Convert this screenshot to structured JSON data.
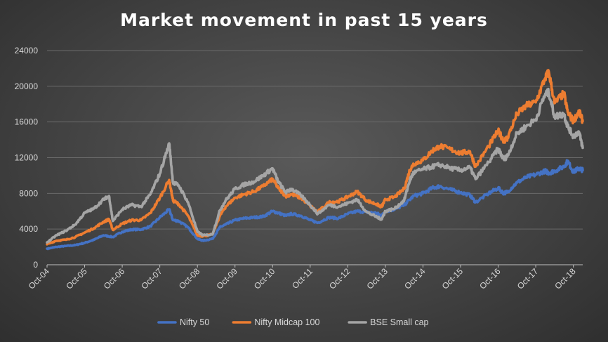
{
  "chart_data": {
    "type": "line",
    "title": "Market  movement  in  past  15  years",
    "xlabel": "",
    "ylabel": "",
    "ylim": [
      0,
      24000
    ],
    "yticks": [
      0,
      4000,
      8000,
      12000,
      16000,
      20000,
      24000
    ],
    "grid": true,
    "legend_position": "bottom",
    "x_tick_labels": [
      "Oct-04",
      "Oct-05",
      "Oct-06",
      "Oct-07",
      "Oct-08",
      "Oct-09",
      "Oct-10",
      "Oct-11",
      "Oct-12",
      "Oct-13",
      "Oct-14",
      "Oct-15",
      "Oct-16",
      "Oct-17",
      "Oct-18"
    ],
    "x_range_years": [
      2004.75,
      2019.0
    ],
    "series": [
      {
        "name": "Nifty 50",
        "color": "#4472c4",
        "points": [
          [
            2004.75,
            1800
          ],
          [
            2005.0,
            2000
          ],
          [
            2005.25,
            2100
          ],
          [
            2005.5,
            2200
          ],
          [
            2005.75,
            2450
          ],
          [
            2006.0,
            2800
          ],
          [
            2006.25,
            3300
          ],
          [
            2006.5,
            3100
          ],
          [
            2006.75,
            3700
          ],
          [
            2007.0,
            3950
          ],
          [
            2007.25,
            3950
          ],
          [
            2007.5,
            4300
          ],
          [
            2007.75,
            5300
          ],
          [
            2008.0,
            6200
          ],
          [
            2008.1,
            5000
          ],
          [
            2008.25,
            4900
          ],
          [
            2008.5,
            4200
          ],
          [
            2008.75,
            2900
          ],
          [
            2008.9,
            2700
          ],
          [
            2009.15,
            2900
          ],
          [
            2009.35,
            4200
          ],
          [
            2009.5,
            4500
          ],
          [
            2009.75,
            5000
          ],
          [
            2010.0,
            5200
          ],
          [
            2010.25,
            5300
          ],
          [
            2010.5,
            5400
          ],
          [
            2010.75,
            6000
          ],
          [
            2010.9,
            5800
          ],
          [
            2011.1,
            5500
          ],
          [
            2011.25,
            5700
          ],
          [
            2011.5,
            5500
          ],
          [
            2011.75,
            5000
          ],
          [
            2011.95,
            4700
          ],
          [
            2012.25,
            5300
          ],
          [
            2012.5,
            5200
          ],
          [
            2012.75,
            5700
          ],
          [
            2013.0,
            6000
          ],
          [
            2013.25,
            5900
          ],
          [
            2013.5,
            5800
          ],
          [
            2013.65,
            5500
          ],
          [
            2013.75,
            6000
          ],
          [
            2014.0,
            6200
          ],
          [
            2014.25,
            6700
          ],
          [
            2014.5,
            7700
          ],
          [
            2014.75,
            8000
          ],
          [
            2015.0,
            8600
          ],
          [
            2015.2,
            8800
          ],
          [
            2015.5,
            8400
          ],
          [
            2015.75,
            8100
          ],
          [
            2016.0,
            7800
          ],
          [
            2016.15,
            7000
          ],
          [
            2016.5,
            8000
          ],
          [
            2016.75,
            8600
          ],
          [
            2016.9,
            8000
          ],
          [
            2017.0,
            8200
          ],
          [
            2017.25,
            9200
          ],
          [
            2017.5,
            9800
          ],
          [
            2017.75,
            10100
          ],
          [
            2018.0,
            10500
          ],
          [
            2018.1,
            10300
          ],
          [
            2018.25,
            10500
          ],
          [
            2018.5,
            11000
          ],
          [
            2018.6,
            11600
          ],
          [
            2018.75,
            10400
          ],
          [
            2018.9,
            10800
          ],
          [
            2019.0,
            10600
          ]
        ]
      },
      {
        "name": "Nifty Midcap 100",
        "color": "#ed7d31",
        "points": [
          [
            2004.75,
            2300
          ],
          [
            2005.0,
            2700
          ],
          [
            2005.25,
            2800
          ],
          [
            2005.5,
            3100
          ],
          [
            2005.75,
            3600
          ],
          [
            2006.0,
            4100
          ],
          [
            2006.25,
            4800
          ],
          [
            2006.4,
            5100
          ],
          [
            2006.5,
            3900
          ],
          [
            2006.75,
            4600
          ],
          [
            2007.0,
            5000
          ],
          [
            2007.25,
            5000
          ],
          [
            2007.5,
            5800
          ],
          [
            2007.75,
            7500
          ],
          [
            2008.0,
            9500
          ],
          [
            2008.1,
            7200
          ],
          [
            2008.25,
            6800
          ],
          [
            2008.5,
            5500
          ],
          [
            2008.75,
            3300
          ],
          [
            2008.9,
            3200
          ],
          [
            2009.15,
            3400
          ],
          [
            2009.35,
            5500
          ],
          [
            2009.5,
            6500
          ],
          [
            2009.75,
            7500
          ],
          [
            2010.0,
            7900
          ],
          [
            2010.25,
            8200
          ],
          [
            2010.5,
            8800
          ],
          [
            2010.75,
            9600
          ],
          [
            2010.9,
            8600
          ],
          [
            2011.1,
            7700
          ],
          [
            2011.25,
            7900
          ],
          [
            2011.5,
            7500
          ],
          [
            2011.75,
            6600
          ],
          [
            2011.95,
            5900
          ],
          [
            2012.25,
            7000
          ],
          [
            2012.5,
            7100
          ],
          [
            2012.75,
            7600
          ],
          [
            2013.0,
            8200
          ],
          [
            2013.25,
            7200
          ],
          [
            2013.5,
            6800
          ],
          [
            2013.65,
            6500
          ],
          [
            2013.75,
            7300
          ],
          [
            2014.0,
            7600
          ],
          [
            2014.25,
            8500
          ],
          [
            2014.4,
            10600
          ],
          [
            2014.5,
            11300
          ],
          [
            2014.75,
            11700
          ],
          [
            2015.0,
            12800
          ],
          [
            2015.2,
            13300
          ],
          [
            2015.5,
            12900
          ],
          [
            2015.75,
            12500
          ],
          [
            2016.0,
            12700
          ],
          [
            2016.15,
            11000
          ],
          [
            2016.5,
            13300
          ],
          [
            2016.75,
            15000
          ],
          [
            2016.9,
            13900
          ],
          [
            2017.0,
            14200
          ],
          [
            2017.25,
            16900
          ],
          [
            2017.5,
            17800
          ],
          [
            2017.75,
            18200
          ],
          [
            2018.0,
            20900
          ],
          [
            2018.1,
            21600
          ],
          [
            2018.25,
            18100
          ],
          [
            2018.5,
            19200
          ],
          [
            2018.6,
            17100
          ],
          [
            2018.75,
            16100
          ],
          [
            2018.9,
            17200
          ],
          [
            2019.0,
            16100
          ]
        ]
      },
      {
        "name": "BSE Small cap",
        "color": "#a5a5a5",
        "points": [
          [
            2004.75,
            2500
          ],
          [
            2005.0,
            3300
          ],
          [
            2005.25,
            3800
          ],
          [
            2005.5,
            4500
          ],
          [
            2005.75,
            5800
          ],
          [
            2006.0,
            6300
          ],
          [
            2006.25,
            7300
          ],
          [
            2006.4,
            7700
          ],
          [
            2006.5,
            4900
          ],
          [
            2006.75,
            6200
          ],
          [
            2007.0,
            6700
          ],
          [
            2007.25,
            6500
          ],
          [
            2007.5,
            7900
          ],
          [
            2007.75,
            10200
          ],
          [
            2008.0,
            13600
          ],
          [
            2008.1,
            9200
          ],
          [
            2008.25,
            8900
          ],
          [
            2008.5,
            7000
          ],
          [
            2008.75,
            3700
          ],
          [
            2008.9,
            3300
          ],
          [
            2009.15,
            3400
          ],
          [
            2009.35,
            6100
          ],
          [
            2009.5,
            7200
          ],
          [
            2009.75,
            8500
          ],
          [
            2010.0,
            9000
          ],
          [
            2010.25,
            9300
          ],
          [
            2010.5,
            10000
          ],
          [
            2010.75,
            10800
          ],
          [
            2010.9,
            9300
          ],
          [
            2011.1,
            8100
          ],
          [
            2011.25,
            8500
          ],
          [
            2011.5,
            7800
          ],
          [
            2011.75,
            6700
          ],
          [
            2011.95,
            5700
          ],
          [
            2012.25,
            6700
          ],
          [
            2012.5,
            6500
          ],
          [
            2012.75,
            6900
          ],
          [
            2013.0,
            7300
          ],
          [
            2013.25,
            5900
          ],
          [
            2013.5,
            5400
          ],
          [
            2013.65,
            5100
          ],
          [
            2013.75,
            6000
          ],
          [
            2014.0,
            6300
          ],
          [
            2014.25,
            7200
          ],
          [
            2014.4,
            9500
          ],
          [
            2014.5,
            10300
          ],
          [
            2014.75,
            10700
          ],
          [
            2015.0,
            11000
          ],
          [
            2015.2,
            11200
          ],
          [
            2015.5,
            10800
          ],
          [
            2015.75,
            10600
          ],
          [
            2016.0,
            10900
          ],
          [
            2016.15,
            9600
          ],
          [
            2016.5,
            11500
          ],
          [
            2016.75,
            13000
          ],
          [
            2016.9,
            11800
          ],
          [
            2017.0,
            12200
          ],
          [
            2017.25,
            14700
          ],
          [
            2017.5,
            15500
          ],
          [
            2017.75,
            16300
          ],
          [
            2018.0,
            19100
          ],
          [
            2018.1,
            19300
          ],
          [
            2018.25,
            16600
          ],
          [
            2018.5,
            16900
          ],
          [
            2018.6,
            15500
          ],
          [
            2018.75,
            14400
          ],
          [
            2018.9,
            14900
          ],
          [
            2019.0,
            13100
          ]
        ]
      }
    ]
  }
}
